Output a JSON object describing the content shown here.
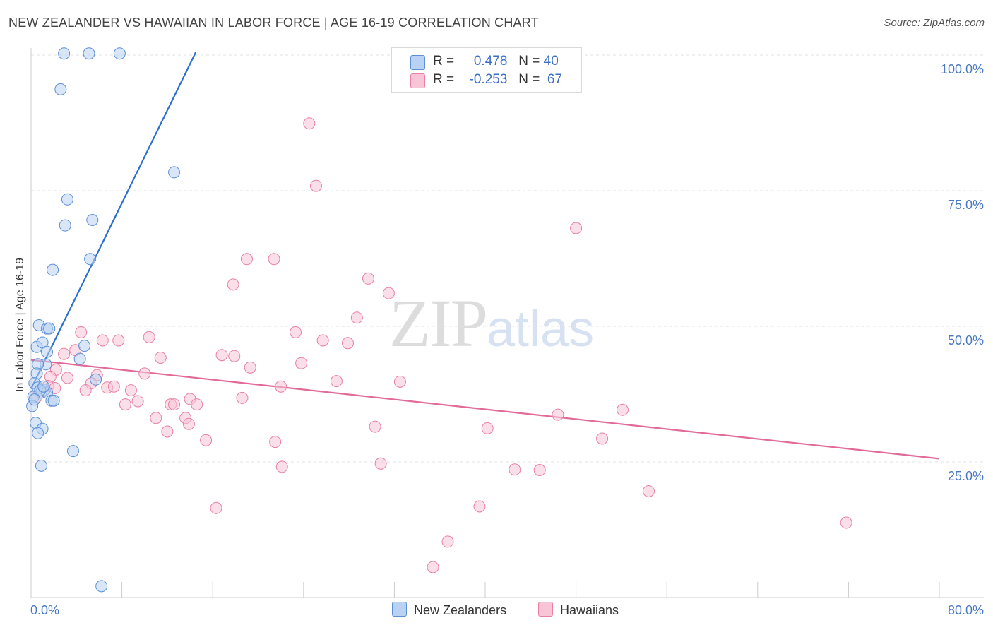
{
  "title": "NEW ZEALANDER VS HAWAIIAN IN LABOR FORCE | AGE 16-19 CORRELATION CHART",
  "source": "Source: ZipAtlas.com",
  "watermark": {
    "zip": "ZIP",
    "atlas": "atlas"
  },
  "legend": {
    "r_label": "R =",
    "n_label": "N =",
    "series": [
      {
        "r": "0.478",
        "n": "40"
      },
      {
        "r": "-0.253",
        "n": "67"
      }
    ]
  },
  "chart_data": {
    "type": "scatter",
    "title": "NEW ZEALANDER VS HAWAIIAN IN LABOR FORCE | AGE 16-19 CORRELATION CHART",
    "xlabel": "",
    "ylabel": "In Labor Force | Age 16-19",
    "xlim": [
      0,
      80
    ],
    "ylim": [
      0,
      105
    ],
    "x_tick_labels": {
      "min": "0.0%",
      "max": "80.0%"
    },
    "y_ticks": [
      25,
      50,
      75,
      100
    ],
    "y_tick_labels": [
      "25.0%",
      "50.0%",
      "75.0%",
      "100.0%"
    ],
    "grid": true,
    "legend_position": "top-center",
    "series": [
      {
        "name": "New Zealanders",
        "color": "#5b8fd6",
        "fill": "#b9d1f2",
        "trend": {
          "x": [
            0,
            14.5
          ],
          "y": [
            38.5,
            100.5
          ],
          "color": "#2a6fd0"
        },
        "points": [
          [
            2.9,
            100.3
          ],
          [
            5.1,
            100.3
          ],
          [
            7.8,
            100.3
          ],
          [
            2.6,
            93.7
          ],
          [
            12.6,
            78.4
          ],
          [
            3.2,
            73.4
          ],
          [
            3.0,
            68.6
          ],
          [
            5.4,
            69.6
          ],
          [
            5.2,
            62.4
          ],
          [
            1.9,
            60.4
          ],
          [
            0.7,
            50.2
          ],
          [
            1.4,
            49.6
          ],
          [
            1.6,
            49.6
          ],
          [
            0.5,
            46.2
          ],
          [
            1.0,
            47.0
          ],
          [
            1.4,
            45.3
          ],
          [
            4.7,
            46.4
          ],
          [
            4.3,
            44.0
          ],
          [
            1.3,
            43.0
          ],
          [
            0.6,
            43.0
          ],
          [
            0.5,
            41.3
          ],
          [
            5.7,
            40.2
          ],
          [
            0.3,
            39.5
          ],
          [
            0.6,
            38.7
          ],
          [
            1.2,
            38.3
          ],
          [
            0.9,
            37.8
          ],
          [
            1.4,
            37.8
          ],
          [
            0.2,
            37.0
          ],
          [
            1.8,
            36.3
          ],
          [
            2.0,
            36.3
          ],
          [
            0.1,
            35.3
          ],
          [
            0.4,
            32.2
          ],
          [
            1.0,
            31.1
          ],
          [
            0.6,
            30.3
          ],
          [
            3.7,
            27.0
          ],
          [
            0.9,
            24.3
          ],
          [
            6.2,
            2.1
          ],
          [
            0.8,
            38.2
          ],
          [
            1.1,
            38.9
          ],
          [
            0.3,
            36.5
          ]
        ]
      },
      {
        "name": "Hawaiians",
        "color": "#e97fa4",
        "fill": "#f7c5d6",
        "trend": {
          "x": [
            0,
            80
          ],
          "y": [
            43.8,
            25.6
          ],
          "color": "#e26a99"
        },
        "points": [
          [
            24.5,
            87.4
          ],
          [
            25.1,
            75.9
          ],
          [
            48.0,
            68.1
          ],
          [
            19.0,
            62.4
          ],
          [
            21.4,
            62.4
          ],
          [
            17.8,
            57.7
          ],
          [
            29.7,
            58.8
          ],
          [
            31.5,
            56.1
          ],
          [
            28.7,
            51.6
          ],
          [
            4.4,
            48.9
          ],
          [
            10.4,
            48.0
          ],
          [
            6.3,
            47.4
          ],
          [
            7.7,
            47.4
          ],
          [
            23.3,
            48.9
          ],
          [
            25.7,
            47.4
          ],
          [
            27.9,
            46.9
          ],
          [
            2.9,
            44.9
          ],
          [
            3.9,
            45.6
          ],
          [
            11.4,
            44.2
          ],
          [
            16.8,
            44.7
          ],
          [
            17.9,
            44.5
          ],
          [
            23.8,
            43.2
          ],
          [
            2.2,
            42.0
          ],
          [
            19.3,
            42.4
          ],
          [
            10.0,
            41.3
          ],
          [
            5.8,
            41.0
          ],
          [
            3.2,
            40.5
          ],
          [
            1.7,
            40.7
          ],
          [
            26.9,
            39.9
          ],
          [
            32.5,
            39.8
          ],
          [
            1.5,
            39.0
          ],
          [
            5.3,
            39.5
          ],
          [
            6.7,
            38.7
          ],
          [
            7.3,
            38.9
          ],
          [
            8.8,
            38.2
          ],
          [
            22.0,
            38.9
          ],
          [
            4.8,
            38.2
          ],
          [
            0.5,
            37.0
          ],
          [
            8.3,
            35.6
          ],
          [
            9.4,
            36.2
          ],
          [
            12.3,
            35.6
          ],
          [
            14.0,
            36.6
          ],
          [
            14.6,
            35.6
          ],
          [
            18.6,
            36.8
          ],
          [
            12.6,
            35.6
          ],
          [
            11.0,
            33.1
          ],
          [
            13.6,
            33.1
          ],
          [
            13.9,
            32.0
          ],
          [
            12.0,
            30.6
          ],
          [
            30.3,
            31.5
          ],
          [
            40.2,
            31.2
          ],
          [
            46.4,
            33.7
          ],
          [
            52.1,
            34.6
          ],
          [
            15.4,
            29.0
          ],
          [
            21.5,
            28.7
          ],
          [
            50.3,
            29.3
          ],
          [
            30.8,
            24.7
          ],
          [
            22.1,
            24.1
          ],
          [
            42.6,
            23.6
          ],
          [
            44.8,
            23.5
          ],
          [
            54.4,
            19.6
          ],
          [
            16.3,
            16.5
          ],
          [
            39.5,
            16.8
          ],
          [
            71.8,
            13.8
          ],
          [
            36.7,
            10.3
          ],
          [
            35.4,
            5.6
          ],
          [
            2.1,
            38.6
          ]
        ]
      }
    ]
  }
}
